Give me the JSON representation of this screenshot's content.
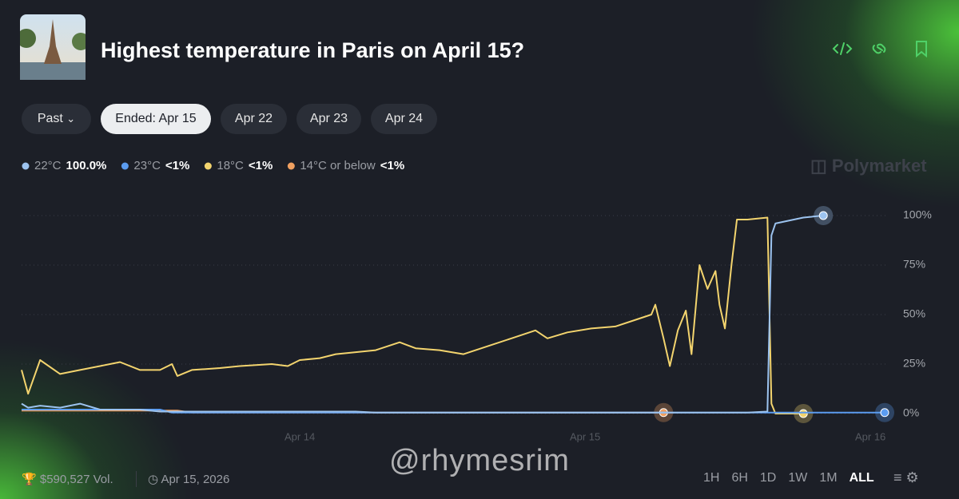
{
  "header": {
    "title": "Highest temperature in Paris on April 15?"
  },
  "filters": [
    "Past",
    "Ended: Apr 15",
    "Apr 22",
    "Apr 23",
    "Apr 24"
  ],
  "brand": "Polymarket",
  "watermark": "@rhymesrim",
  "footer": {
    "volume": "$590,527 Vol.",
    "date": "Apr 15, 2026",
    "ranges": [
      "1H",
      "6H",
      "1D",
      "1W",
      "1M",
      "ALL"
    ]
  },
  "chart_data": {
    "type": "line",
    "x": [
      13.025,
      13.048,
      13.09,
      13.16,
      13.23,
      13.3,
      13.37,
      13.44,
      13.51,
      13.552,
      13.571,
      13.622,
      13.72,
      13.79,
      13.902,
      13.958,
      14.0,
      14.07,
      14.126,
      14.196,
      14.266,
      14.35,
      14.406,
      14.49,
      14.574,
      14.658,
      14.742,
      14.826,
      14.868,
      14.938,
      15.022,
      15.106,
      15.19,
      15.232,
      15.246,
      15.275,
      15.297,
      15.325,
      15.353,
      15.373,
      15.401,
      15.429,
      15.457,
      15.471,
      15.49,
      15.513,
      15.532,
      15.569,
      15.639,
      15.653,
      15.667,
      15.765,
      15.835,
      16.05
    ],
    "series": [
      {
        "name": "22°C",
        "legend_value": "100.0%",
        "color": "#9cc3ef",
        "values": [
          5,
          3,
          4,
          3,
          5,
          2,
          2,
          2,
          1,
          1,
          1,
          1,
          1,
          1,
          1,
          1,
          1,
          1,
          1,
          1,
          0.5,
          0.5,
          0.5,
          0.5,
          0.5,
          0.5,
          0.5,
          0.5,
          0.5,
          0.5,
          0.5,
          0.5,
          0.5,
          0.5,
          0.5,
          0.5,
          0.5,
          0.5,
          0.5,
          0.5,
          0.5,
          0.5,
          0.5,
          0.5,
          0.5,
          0.5,
          0.5,
          0.5,
          1,
          90,
          96,
          99,
          100,
          null
        ]
      },
      {
        "name": "23°C",
        "legend_value": "<1%",
        "color": "#5b9cf0",
        "values": [
          2,
          2,
          2,
          2,
          2,
          2,
          2,
          2,
          2,
          0.5,
          0.5,
          0.5,
          0.5,
          0.5,
          0.5,
          0.5,
          0.5,
          0.5,
          0.5,
          0.5,
          0.5,
          0.5,
          0.5,
          0.5,
          0.5,
          0.5,
          0.5,
          0.5,
          0.5,
          0.5,
          0.5,
          0.5,
          0.5,
          0.5,
          0.5,
          0.5,
          0.5,
          0.5,
          0.5,
          0.5,
          0.5,
          0.5,
          0.5,
          0.5,
          0.5,
          0.5,
          0.5,
          0.5,
          0.5,
          0.5,
          0.5,
          0.5,
          0.5,
          0.5
        ]
      },
      {
        "name": "18°C",
        "legend_value": "<1%",
        "color": "#f3d46e",
        "values": [
          22,
          10,
          27,
          20,
          22,
          24,
          26,
          22,
          22,
          25,
          19,
          22,
          23,
          24,
          25,
          24,
          27,
          28,
          30,
          31,
          32,
          36,
          33,
          32,
          30,
          34,
          38,
          42,
          38,
          41,
          43,
          44,
          48,
          50,
          55,
          38,
          24,
          42,
          52,
          30,
          75,
          63,
          72,
          55,
          43,
          75,
          98,
          98,
          99,
          5,
          0,
          0,
          null,
          null
        ]
      },
      {
        "name": "14°C or below",
        "legend_value": "<1%",
        "color": "#f0a060",
        "values": [
          1.5,
          1.5,
          1.5,
          1.5,
          1.5,
          1.5,
          1.5,
          1.5,
          1.5,
          1.5,
          1.5,
          0.5,
          0.5,
          0.5,
          0.5,
          0.5,
          0.5,
          0.5,
          0.5,
          0.5,
          0.5,
          0.5,
          0.5,
          0.5,
          0.5,
          0.5,
          0.5,
          0.5,
          0.5,
          0.5,
          0.5,
          0.5,
          0.5,
          0.5,
          0.5,
          0.5,
          null,
          null,
          null,
          null,
          null,
          null,
          null,
          null,
          null,
          null,
          null,
          null,
          null,
          null,
          null,
          null,
          null,
          null
        ]
      }
    ],
    "xlim": [
      13.025,
      16.05
    ],
    "xticks": [
      {
        "value": 14,
        "label": "Apr 14"
      },
      {
        "value": 15,
        "label": "Apr 15"
      },
      {
        "value": 16,
        "label": "Apr 16"
      }
    ],
    "ylim": [
      0,
      100
    ],
    "yticks": [
      {
        "value": 0,
        "label": "0%"
      },
      {
        "value": 25,
        "label": "25%"
      },
      {
        "value": 50,
        "label": "50%"
      },
      {
        "value": 75,
        "label": "75%"
      },
      {
        "value": 100,
        "label": "100%"
      }
    ],
    "grid": true
  }
}
